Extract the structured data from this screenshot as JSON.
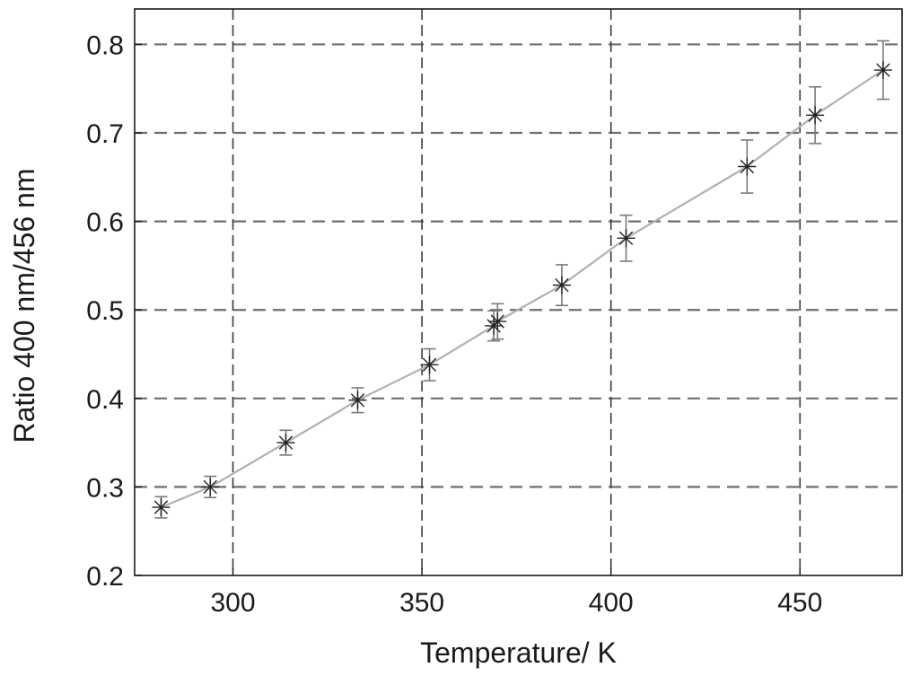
{
  "chart_data": {
    "type": "line",
    "xlabel": "Temperature/ K",
    "ylabel": "Ratio 400 nm/456 nm",
    "xlim": [
      274,
      477
    ],
    "ylim": [
      0.2,
      0.84
    ],
    "xticks": [
      300,
      350,
      400,
      450
    ],
    "yticks": [
      0.2,
      0.3,
      0.4,
      0.5,
      0.6,
      0.7,
      0.8
    ],
    "xtick_labels": [
      "300",
      "350",
      "400",
      "450"
    ],
    "ytick_labels": [
      "0.2",
      "0.3",
      "0.4",
      "0.5",
      "0.6",
      "0.7",
      "0.8"
    ],
    "grid": true,
    "grid_style": "dashed",
    "line_color": "#b0b0b0",
    "marker": "asterisk",
    "marker_color": "#222222",
    "errorbar_color": "#7a7a7a",
    "series": [
      {
        "x": [
          281,
          294,
          314,
          333,
          352,
          369,
          370,
          387,
          404,
          436,
          454,
          472
        ],
        "y": [
          0.277,
          0.3,
          0.35,
          0.398,
          0.438,
          0.482,
          0.487,
          0.528,
          0.581,
          0.662,
          0.72,
          0.771
        ],
        "yerr": [
          0.012,
          0.012,
          0.014,
          0.014,
          0.018,
          0.017,
          0.02,
          0.023,
          0.026,
          0.03,
          0.032,
          0.033
        ]
      }
    ]
  }
}
